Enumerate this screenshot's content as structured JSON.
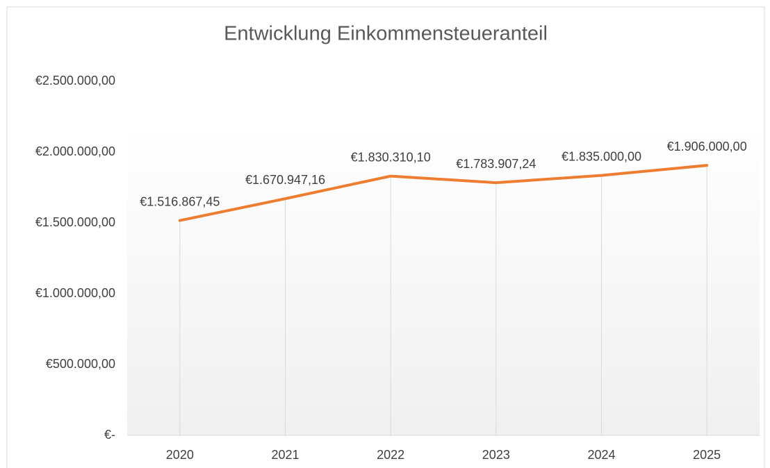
{
  "chart_data": {
    "type": "line",
    "title": "Entwicklung Einkommensteueranteil",
    "categories": [
      "2020",
      "2021",
      "2022",
      "2023",
      "2024",
      "2025"
    ],
    "series": [
      {
        "name": "Einkommensteueranteil",
        "color": "#ed7d31",
        "values": [
          1516867.45,
          1670947.16,
          1830310.1,
          1783907.24,
          1835000.0,
          1906000.0
        ],
        "value_labels": [
          "€1.516.867,45",
          "€1.670.947,16",
          "€1.830.310,10",
          "€1.783.907,24",
          "€1.835.000,00",
          "€1.906.000,00"
        ]
      }
    ],
    "ylim": [
      0,
      2500000
    ],
    "yticks": [
      {
        "value": 0,
        "label": "€-"
      },
      {
        "value": 500000,
        "label": "€500.000,00"
      },
      {
        "value": 1000000,
        "label": "€1.000.000,00"
      },
      {
        "value": 1500000,
        "label": "€1.500.000,00"
      },
      {
        "value": 2000000,
        "label": "€2.000.000,00"
      },
      {
        "value": 2500000,
        "label": "€2.500.000,00"
      }
    ],
    "drop_lines": true
  }
}
